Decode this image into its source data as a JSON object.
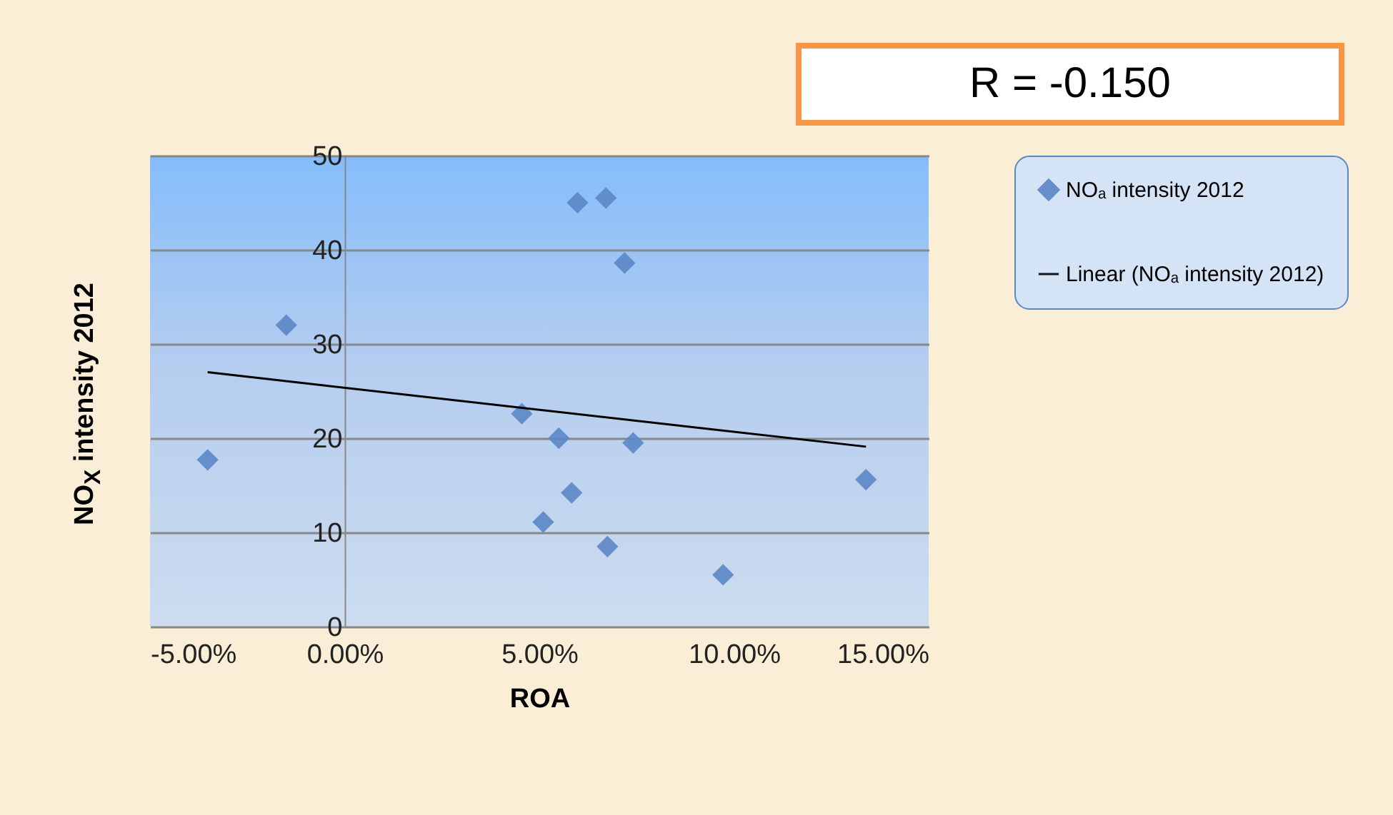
{
  "chart_data": {
    "type": "scatter",
    "xlabel": "ROA",
    "ylabel": "NO$_{X}$ intensity 2012",
    "annotations": [
      "R = -0.150"
    ],
    "xlim": [
      -5,
      15
    ],
    "xticks": [
      {
        "value": -5,
        "label": "-5.00%"
      },
      {
        "value": 0,
        "label": "0.00%"
      },
      {
        "value": 5,
        "label": "5.00%"
      },
      {
        "value": 10,
        "label": "10.00%"
      },
      {
        "value": 15,
        "label": "15.00%"
      }
    ],
    "ylim": [
      0,
      50
    ],
    "yticks": [
      0,
      10,
      20,
      30,
      40,
      50
    ],
    "grid": "y",
    "legend": "right",
    "marker": "diamond",
    "series": [
      {
        "name": "NOₐ intensity 2012",
        "color": "#5b87c5",
        "x": [
          -3.52,
          -1.5,
          4.55,
          5.5,
          5.1,
          5.83,
          5.98,
          6.71,
          6.75,
          7.19,
          7.41,
          9.72,
          13.39
        ],
        "values": [
          17.7,
          32.0,
          22.6,
          20.0,
          11.1,
          14.2,
          45.0,
          45.5,
          8.5,
          38.6,
          19.5,
          5.5,
          15.6
        ]
      },
      {
        "name": "Linear (NOₐ intensity 2012)",
        "type": "line",
        "color": "#000000",
        "line_style": "solid",
        "marker": "none",
        "x": [
          -3.52,
          13.39
        ],
        "values": [
          27.0,
          19.1
        ]
      }
    ]
  }
}
